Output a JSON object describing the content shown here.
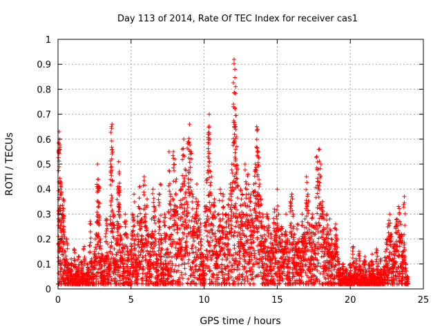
{
  "chart_data": {
    "type": "scatter",
    "title": "Day 113 of 2014, Rate Of TEC Index for receiver cas1",
    "xlabel": "GPS time / hours",
    "ylabel": "ROTI / TECUs",
    "xlim": [
      0,
      25
    ],
    "ylim": [
      0,
      1
    ],
    "xticks": [
      0,
      5,
      10,
      15,
      20,
      25
    ],
    "xtick_labels": [
      "0",
      "5",
      "10",
      "15",
      "20",
      "25"
    ],
    "yticks": [
      0,
      0.1,
      0.2,
      0.3,
      0.4,
      0.5,
      0.6,
      0.7,
      0.8,
      0.9,
      1
    ],
    "ytick_labels": [
      "0",
      "0.1",
      "0.2",
      "0.3",
      "0.4",
      "0.5",
      "0.6",
      "0.7",
      "0.8",
      "0.9",
      "1"
    ],
    "grid": true,
    "marker": "+",
    "series": [
      {
        "name": "ROTI",
        "color": "#ff0000",
        "points": [
          [
            0.02,
            0.02
          ],
          [
            0.05,
            0.55
          ],
          [
            0.08,
            0.63
          ],
          [
            0.1,
            0.6
          ],
          [
            0.15,
            0.43
          ],
          [
            0.2,
            0.42
          ],
          [
            0.3,
            0.3
          ],
          [
            0.35,
            0.36
          ],
          [
            0.4,
            0.25
          ],
          [
            0.5,
            0.15
          ],
          [
            0.6,
            0.2
          ],
          [
            0.7,
            0.1
          ],
          [
            0.8,
            0.08
          ],
          [
            0.9,
            0.12
          ],
          [
            1.0,
            0.05
          ],
          [
            1.1,
            0.16
          ],
          [
            1.2,
            0.09
          ],
          [
            1.3,
            0.07
          ],
          [
            1.4,
            0.13
          ],
          [
            1.5,
            0.04
          ],
          [
            1.6,
            0.11
          ],
          [
            1.7,
            0.06
          ],
          [
            1.8,
            0.17
          ],
          [
            1.9,
            0.05
          ],
          [
            2.0,
            0.1
          ],
          [
            2.1,
            0.08
          ],
          [
            2.2,
            0.27
          ],
          [
            2.3,
            0.12
          ],
          [
            2.4,
            0.06
          ],
          [
            2.5,
            0.15
          ],
          [
            2.6,
            0.22
          ],
          [
            2.7,
            0.5
          ],
          [
            2.75,
            0.44
          ],
          [
            2.8,
            0.41
          ],
          [
            2.9,
            0.2
          ],
          [
            3.0,
            0.14
          ],
          [
            3.1,
            0.07
          ],
          [
            3.2,
            0.12
          ],
          [
            3.3,
            0.28
          ],
          [
            3.4,
            0.18
          ],
          [
            3.5,
            0.1
          ],
          [
            3.6,
            0.5
          ],
          [
            3.65,
            0.65
          ],
          [
            3.7,
            0.66
          ],
          [
            3.8,
            0.3
          ],
          [
            3.9,
            0.12
          ],
          [
            4.0,
            0.2
          ],
          [
            4.1,
            0.4
          ],
          [
            4.15,
            0.51
          ],
          [
            4.2,
            0.41
          ],
          [
            4.3,
            0.25
          ],
          [
            4.4,
            0.18
          ],
          [
            4.5,
            0.09
          ],
          [
            4.6,
            0.3
          ],
          [
            4.7,
            0.22
          ],
          [
            4.8,
            0.14
          ],
          [
            4.9,
            0.06
          ],
          [
            5.0,
            0.18
          ],
          [
            5.1,
            0.3
          ],
          [
            5.2,
            0.38
          ],
          [
            5.3,
            0.2
          ],
          [
            5.4,
            0.12
          ],
          [
            5.5,
            0.33
          ],
          [
            5.6,
            0.41
          ],
          [
            5.7,
            0.28
          ],
          [
            5.8,
            0.18
          ],
          [
            5.9,
            0.45
          ],
          [
            6.0,
            0.3
          ],
          [
            6.1,
            0.36
          ],
          [
            6.2,
            0.22
          ],
          [
            6.3,
            0.15
          ],
          [
            6.4,
            0.28
          ],
          [
            6.5,
            0.4
          ],
          [
            6.6,
            0.33
          ],
          [
            6.7,
            0.2
          ],
          [
            6.8,
            0.12
          ],
          [
            6.9,
            0.38
          ],
          [
            7.0,
            0.42
          ],
          [
            7.1,
            0.2
          ],
          [
            7.2,
            0.1
          ],
          [
            7.3,
            0.3
          ],
          [
            7.4,
            0.22
          ],
          [
            7.5,
            0.16
          ],
          [
            7.6,
            0.55
          ],
          [
            7.7,
            0.38
          ],
          [
            7.8,
            0.25
          ],
          [
            7.9,
            0.55
          ],
          [
            8.0,
            0.52
          ],
          [
            8.1,
            0.44
          ],
          [
            8.2,
            0.3
          ],
          [
            8.3,
            0.2
          ],
          [
            8.4,
            0.4
          ],
          [
            8.5,
            0.56
          ],
          [
            8.6,
            0.6
          ],
          [
            8.7,
            0.48
          ],
          [
            8.8,
            0.35
          ],
          [
            8.9,
            0.59
          ],
          [
            9.0,
            0.66
          ],
          [
            9.1,
            0.55
          ],
          [
            9.2,
            0.38
          ],
          [
            9.3,
            0.25
          ],
          [
            9.4,
            0.3
          ],
          [
            9.5,
            0.42
          ],
          [
            9.6,
            0.35
          ],
          [
            9.7,
            0.28
          ],
          [
            9.8,
            0.2
          ],
          [
            9.9,
            0.14
          ],
          [
            10.0,
            0.1
          ],
          [
            10.1,
            0.33
          ],
          [
            10.2,
            0.44
          ],
          [
            10.3,
            0.62
          ],
          [
            10.35,
            0.7
          ],
          [
            10.4,
            0.6
          ],
          [
            10.5,
            0.45
          ],
          [
            10.6,
            0.3
          ],
          [
            10.7,
            0.36
          ],
          [
            10.8,
            0.2
          ],
          [
            10.9,
            0.14
          ],
          [
            11.0,
            0.3
          ],
          [
            11.1,
            0.4
          ],
          [
            11.2,
            0.25
          ],
          [
            11.3,
            0.38
          ],
          [
            11.4,
            0.18
          ],
          [
            11.5,
            0.3
          ],
          [
            11.6,
            0.22
          ],
          [
            11.7,
            0.36
          ],
          [
            11.8,
            0.42
          ],
          [
            11.9,
            0.5
          ],
          [
            12.0,
            0.74
          ],
          [
            12.05,
            0.92
          ],
          [
            12.1,
            0.88
          ],
          [
            12.15,
            0.81
          ],
          [
            12.2,
            0.61
          ],
          [
            12.3,
            0.48
          ],
          [
            12.4,
            0.3
          ],
          [
            12.5,
            0.4
          ],
          [
            12.6,
            0.38
          ],
          [
            12.7,
            0.3
          ],
          [
            12.8,
            0.5
          ],
          [
            12.9,
            0.42
          ],
          [
            13.0,
            0.46
          ],
          [
            13.1,
            0.33
          ],
          [
            13.2,
            0.38
          ],
          [
            13.3,
            0.28
          ],
          [
            13.4,
            0.42
          ],
          [
            13.5,
            0.5
          ],
          [
            13.6,
            0.65
          ],
          [
            13.65,
            0.64
          ],
          [
            13.7,
            0.55
          ],
          [
            13.8,
            0.42
          ],
          [
            13.9,
            0.36
          ],
          [
            14.0,
            0.3
          ],
          [
            14.1,
            0.25
          ],
          [
            14.2,
            0.2
          ],
          [
            14.3,
            0.3
          ],
          [
            14.4,
            0.28
          ],
          [
            14.5,
            0.15
          ],
          [
            14.6,
            0.22
          ],
          [
            14.7,
            0.18
          ],
          [
            14.8,
            0.32
          ],
          [
            14.9,
            0.26
          ],
          [
            15.0,
            0.4
          ],
          [
            15.1,
            0.3
          ],
          [
            15.2,
            0.2
          ],
          [
            15.3,
            0.25
          ],
          [
            15.4,
            0.16
          ],
          [
            15.5,
            0.22
          ],
          [
            15.6,
            0.3
          ],
          [
            15.7,
            0.2
          ],
          [
            15.8,
            0.15
          ],
          [
            15.9,
            0.35
          ],
          [
            16.0,
            0.38
          ],
          [
            16.1,
            0.3
          ],
          [
            16.2,
            0.22
          ],
          [
            16.3,
            0.18
          ],
          [
            16.4,
            0.26
          ],
          [
            16.5,
            0.2
          ],
          [
            16.6,
            0.15
          ],
          [
            16.7,
            0.3
          ],
          [
            16.8,
            0.22
          ],
          [
            16.9,
            0.28
          ],
          [
            17.0,
            0.45
          ],
          [
            17.1,
            0.38
          ],
          [
            17.2,
            0.26
          ],
          [
            17.3,
            0.2
          ],
          [
            17.4,
            0.3
          ],
          [
            17.5,
            0.25
          ],
          [
            17.6,
            0.22
          ],
          [
            17.7,
            0.53
          ],
          [
            17.8,
            0.48
          ],
          [
            17.9,
            0.56
          ],
          [
            18.0,
            0.5
          ],
          [
            18.1,
            0.35
          ],
          [
            18.2,
            0.28
          ],
          [
            18.3,
            0.2
          ],
          [
            18.4,
            0.3
          ],
          [
            18.5,
            0.22
          ],
          [
            18.6,
            0.28
          ],
          [
            18.7,
            0.2
          ],
          [
            18.8,
            0.15
          ],
          [
            18.9,
            0.18
          ],
          [
            19.0,
            0.26
          ],
          [
            19.1,
            0.2
          ],
          [
            19.2,
            0.12
          ],
          [
            19.3,
            0.08
          ],
          [
            19.4,
            0.06
          ],
          [
            19.5,
            0.1
          ],
          [
            19.6,
            0.05
          ],
          [
            19.7,
            0.08
          ],
          [
            19.8,
            0.04
          ],
          [
            19.9,
            0.06
          ],
          [
            20.0,
            0.1
          ],
          [
            20.1,
            0.05
          ],
          [
            20.2,
            0.17
          ],
          [
            20.3,
            0.08
          ],
          [
            20.4,
            0.12
          ],
          [
            20.5,
            0.06
          ],
          [
            20.6,
            0.15
          ],
          [
            20.7,
            0.09
          ],
          [
            20.8,
            0.05
          ],
          [
            20.9,
            0.1
          ],
          [
            21.0,
            0.13
          ],
          [
            21.1,
            0.07
          ],
          [
            21.2,
            0.04
          ],
          [
            21.3,
            0.1
          ],
          [
            21.4,
            0.06
          ],
          [
            21.5,
            0.14
          ],
          [
            21.6,
            0.08
          ],
          [
            21.7,
            0.05
          ],
          [
            21.8,
            0.16
          ],
          [
            21.9,
            0.1
          ],
          [
            22.0,
            0.06
          ],
          [
            22.1,
            0.12
          ],
          [
            22.2,
            0.04
          ],
          [
            22.3,
            0.09
          ],
          [
            22.4,
            0.15
          ],
          [
            22.5,
            0.2
          ],
          [
            22.6,
            0.26
          ],
          [
            22.7,
            0.3
          ],
          [
            22.8,
            0.22
          ],
          [
            22.9,
            0.12
          ],
          [
            23.0,
            0.18
          ],
          [
            23.1,
            0.25
          ],
          [
            23.2,
            0.28
          ],
          [
            23.3,
            0.33
          ],
          [
            23.4,
            0.27
          ],
          [
            23.5,
            0.22
          ],
          [
            23.6,
            0.15
          ],
          [
            23.7,
            0.37
          ],
          [
            23.8,
            0.1
          ],
          [
            23.9,
            0.05
          ]
        ]
      }
    ]
  }
}
